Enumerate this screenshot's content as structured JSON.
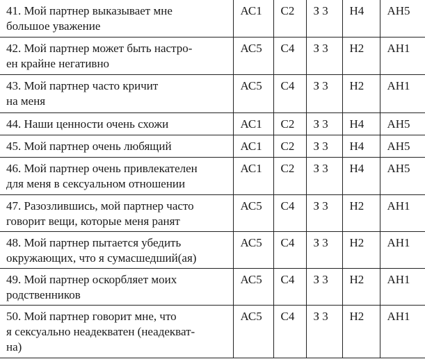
{
  "table": {
    "rows": [
      {
        "text": [
          "41. Мой партнер выказывает мне",
          "большое уважение"
        ],
        "codes": [
          "АС1",
          "С2",
          "З 3",
          "Н4",
          "АН5"
        ]
      },
      {
        "text": [
          "42. Мой партнер может быть настро-",
          "ен крайне негативно"
        ],
        "codes": [
          "АС5",
          "С4",
          "З 3",
          "Н2",
          "АН1"
        ]
      },
      {
        "text": [
          "43. Мой партнер часто кричит",
          "на меня"
        ],
        "codes": [
          "АС5",
          "С4",
          "З 3",
          "Н2",
          "АН1"
        ]
      },
      {
        "text": [
          "44. Наши ценности очень схожи"
        ],
        "codes": [
          "АС1",
          "С2",
          "З 3",
          "Н4",
          "АН5"
        ]
      },
      {
        "text": [
          "45. Мой партнер очень любящий"
        ],
        "codes": [
          "АС1",
          "С2",
          "З 3",
          "Н4",
          "АН5"
        ]
      },
      {
        "text": [
          "46. Мой партнер очень привлекателен",
          "для меня в сексуальном отношении"
        ],
        "codes": [
          "АС1",
          "С2",
          "З 3",
          "Н4",
          "АН5"
        ]
      },
      {
        "text": [
          "47. Разозлившись, мой партнер часто",
          "говорит вещи, которые меня ранят"
        ],
        "codes": [
          "АС5",
          "С4",
          "З 3",
          "Н2",
          "АН1"
        ]
      },
      {
        "text": [
          "48. Мой партнер пытается убедить",
          "окружающих, что я сумасшедший(ая)"
        ],
        "codes": [
          "АС5",
          "С4",
          "З 3",
          "Н2",
          "АН1"
        ]
      },
      {
        "text": [
          "49. Мой партнер оскорбляет моих",
          "родственников"
        ],
        "codes": [
          "АС5",
          "С4",
          "З 3",
          "Н2",
          "АН1"
        ]
      },
      {
        "text": [
          "50. Мой партнер говорит мне, что",
          "я сексуально неадекватен (неадекват-",
          "на)"
        ],
        "codes": [
          "АС5",
          "С4",
          "З 3",
          "Н2",
          "АН1"
        ]
      }
    ]
  }
}
